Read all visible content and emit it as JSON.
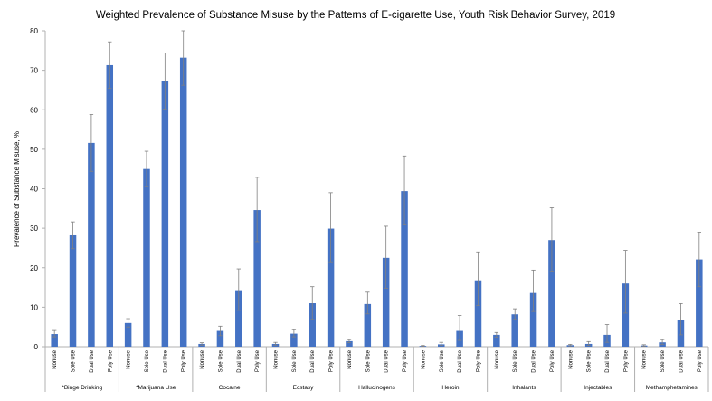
{
  "chart_data": {
    "type": "bar",
    "title": "Weighted Prevalence of Substance Misuse by the Patterns of E-cigarette Use, Youth Risk Behavior Survey, 2019",
    "xlabel": "",
    "ylabel": "Prevalence of Substance Misuse, %",
    "ylim": [
      0,
      80
    ],
    "yticks": [
      0,
      10,
      20,
      30,
      40,
      50,
      60,
      70,
      80
    ],
    "grid": false,
    "legend": "none",
    "bar_color": "#4472C4",
    "errorbar_color": "#808080",
    "categories": [
      "Nonuse",
      "Sole Use",
      "Dual Use",
      "Poly Use"
    ],
    "groups": [
      {
        "name": "*Binge Drinking",
        "values": [
          3.2,
          28.2,
          51.6,
          71.3
        ],
        "err_low": [
          2.5,
          24.8,
          44.4,
          65.4
        ],
        "err_high": [
          4.1,
          31.6,
          58.8,
          77.2
        ]
      },
      {
        "name": "*Marijuana Use",
        "values": [
          6.0,
          45.0,
          67.3,
          73.2
        ],
        "err_low": [
          5.0,
          40.5,
          60.2,
          66.2
        ],
        "err_high": [
          7.1,
          49.5,
          74.4,
          80.0
        ]
      },
      {
        "name": "Cocaine",
        "values": [
          0.7,
          4.0,
          14.3,
          34.6
        ],
        "err_low": [
          0.4,
          2.8,
          9.2,
          26.6
        ],
        "err_high": [
          1.0,
          5.2,
          19.7,
          42.9
        ]
      },
      {
        "name": "Ecstasy",
        "values": [
          0.7,
          3.3,
          11.0,
          29.9
        ],
        "err_low": [
          0.4,
          2.5,
          6.9,
          21.5
        ],
        "err_high": [
          1.1,
          4.3,
          15.2,
          39.0
        ]
      },
      {
        "name": "Hallucinogens",
        "values": [
          1.4,
          10.8,
          22.5,
          39.4
        ],
        "err_low": [
          1.0,
          8.3,
          14.8,
          30.8
        ],
        "err_high": [
          1.8,
          13.8,
          30.5,
          48.3
        ]
      },
      {
        "name": "Heroin",
        "values": [
          0.2,
          0.6,
          4.0,
          16.8
        ],
        "err_low": [
          0.1,
          0.3,
          1.6,
          10.4
        ],
        "err_high": [
          0.3,
          1.1,
          7.9,
          24.0
        ]
      },
      {
        "name": "Inhalants",
        "values": [
          3.0,
          8.2,
          13.6,
          27.0
        ],
        "err_low": [
          2.4,
          6.9,
          8.9,
          19.1
        ],
        "err_high": [
          3.6,
          9.6,
          19.4,
          35.2
        ]
      },
      {
        "name": "Injectables",
        "values": [
          0.4,
          0.7,
          3.0,
          16.0
        ],
        "err_low": [
          0.2,
          0.3,
          1.1,
          8.5
        ],
        "err_high": [
          0.6,
          1.3,
          5.6,
          24.4
        ]
      },
      {
        "name": "Methamphetamines",
        "values": [
          0.3,
          1.1,
          6.7,
          22.1
        ],
        "err_low": [
          0.1,
          0.6,
          3.0,
          15.2
        ],
        "err_high": [
          0.5,
          1.8,
          10.9,
          29.0
        ]
      }
    ]
  }
}
